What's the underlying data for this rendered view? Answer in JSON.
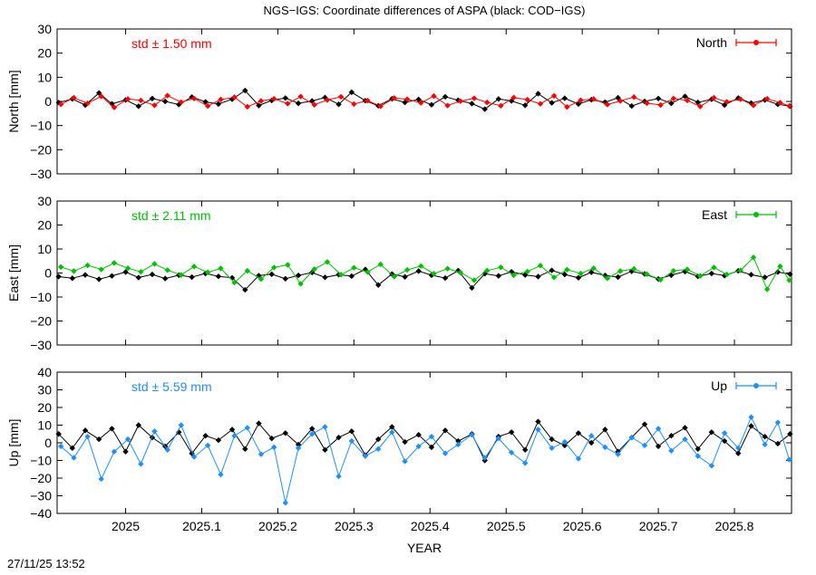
{
  "title": "NGS−IGS: Coordinate differences of ASPA (black: COD−IGS)",
  "xlabel": "YEAR",
  "timestamp": "27/11/25 13:52",
  "chart_data": [
    {
      "type": "line",
      "panel": "north",
      "ylabel": "North [mm]",
      "std_label": "std ± 1.50 mm",
      "legend": "North",
      "color": "#ff0000",
      "xlim": [
        2024.91,
        2025.875
      ],
      "ylim": [
        -30,
        30
      ],
      "yticks": [
        -30,
        -20,
        -10,
        0,
        10,
        20,
        30
      ],
      "xticks": [
        2025,
        2025.1,
        2025.2,
        2025.3,
        2025.4,
        2025.5,
        2025.6,
        2025.7,
        2025.8
      ],
      "legend_position": "top-right",
      "series": [
        {
          "name": "North",
          "color": "#ff0000",
          "x": [
            2024.915,
            2024.932,
            2024.95,
            2024.968,
            2024.985,
            2025.003,
            2025.02,
            2025.038,
            2025.055,
            2025.073,
            2025.09,
            2025.108,
            2025.125,
            2025.143,
            2025.16,
            2025.178,
            2025.195,
            2025.213,
            2025.23,
            2025.248,
            2025.265,
            2025.283,
            2025.3,
            2025.318,
            2025.335,
            2025.353,
            2025.37,
            2025.388,
            2025.405,
            2025.423,
            2025.44,
            2025.458,
            2025.475,
            2025.493,
            2025.51,
            2025.528,
            2025.545,
            2025.563,
            2025.58,
            2025.598,
            2025.615,
            2025.633,
            2025.65,
            2025.668,
            2025.685,
            2025.703,
            2025.72,
            2025.738,
            2025.755,
            2025.773,
            2025.79,
            2025.808,
            2025.825,
            2025.843,
            2025.86,
            2025.872
          ],
          "y": [
            -1.2,
            1.5,
            -0.8,
            2.1,
            -2.5,
            1.0,
            0.4,
            -1.6,
            2.4,
            -0.3,
            1.2,
            -1.9,
            0.8,
            1.7,
            -2.2,
            0.2,
            1.1,
            -0.9,
            2.0,
            -1.4,
            0.6,
            1.9,
            -1.1,
            0.3,
            -2.0,
            1.4,
            0.9,
            -0.6,
            2.2,
            -1.7,
            0.1,
            1.3,
            -0.4,
            -1.8,
            1.6,
            0.7,
            -1.0,
            2.3,
            -2.3,
            0.5,
            1.0,
            -1.3,
            0.2,
            1.8,
            -0.7,
            -1.5,
            1.2,
            0.4,
            -2.1,
            1.5,
            -0.2,
            0.9,
            -1.6,
            1.1,
            -0.5,
            -1.9
          ]
        },
        {
          "name": "COD−IGS",
          "color": "#000000",
          "x": [
            2024.912,
            2024.93,
            2024.947,
            2024.965,
            2024.982,
            2025.0,
            2025.017,
            2025.035,
            2025.052,
            2025.07,
            2025.087,
            2025.105,
            2025.122,
            2025.14,
            2025.157,
            2025.175,
            2025.192,
            2025.21,
            2025.227,
            2025.245,
            2025.262,
            2025.28,
            2025.297,
            2025.315,
            2025.332,
            2025.35,
            2025.367,
            2025.385,
            2025.402,
            2025.42,
            2025.437,
            2025.455,
            2025.472,
            2025.49,
            2025.507,
            2025.525,
            2025.542,
            2025.56,
            2025.577,
            2025.595,
            2025.612,
            2025.63,
            2025.647,
            2025.665,
            2025.682,
            2025.7,
            2025.717,
            2025.735,
            2025.752,
            2025.77,
            2025.787,
            2025.805,
            2025.822,
            2025.84,
            2025.857,
            2025.873
          ],
          "y": [
            -0.5,
            1.0,
            -1.5,
            3.5,
            -1.0,
            0.6,
            -2.0,
            1.2,
            0.0,
            -1.3,
            1.8,
            -0.2,
            -1.1,
            0.9,
            4.5,
            -1.7,
            0.4,
            1.4,
            -0.8,
            0.2,
            1.6,
            -1.2,
            3.8,
            0.3,
            -1.8,
            1.1,
            -0.4,
            0.8,
            -1.4,
            1.9,
            0.5,
            -0.9,
            -3.2,
            1.0,
            0.2,
            -1.6,
            3.2,
            -0.6,
            1.3,
            -1.1,
            0.7,
            -0.3,
            1.5,
            -1.9,
            0.0,
            1.2,
            -0.8,
            2.1,
            -0.4,
            0.9,
            -1.5,
            1.4,
            -0.7,
            0.6,
            -1.2,
            -2.0
          ]
        }
      ]
    },
    {
      "type": "line",
      "panel": "east",
      "ylabel": "East [mm]",
      "std_label": "std ± 2.11 mm",
      "legend": "East",
      "color": "#00c000",
      "xlim": [
        2024.91,
        2025.875
      ],
      "ylim": [
        -30,
        30
      ],
      "yticks": [
        -30,
        -20,
        -10,
        0,
        10,
        20,
        30
      ],
      "xticks": [
        2025,
        2025.1,
        2025.2,
        2025.3,
        2025.4,
        2025.5,
        2025.6,
        2025.7,
        2025.8
      ],
      "legend_position": "top-right",
      "series": [
        {
          "name": "East",
          "color": "#00c000",
          "x": [
            2024.915,
            2024.932,
            2024.95,
            2024.968,
            2024.985,
            2025.003,
            2025.02,
            2025.038,
            2025.055,
            2025.073,
            2025.09,
            2025.108,
            2025.125,
            2025.143,
            2025.16,
            2025.178,
            2025.195,
            2025.213,
            2025.23,
            2025.248,
            2025.265,
            2025.283,
            2025.3,
            2025.318,
            2025.335,
            2025.353,
            2025.37,
            2025.388,
            2025.405,
            2025.423,
            2025.44,
            2025.458,
            2025.475,
            2025.493,
            2025.51,
            2025.528,
            2025.545,
            2025.563,
            2025.58,
            2025.598,
            2025.615,
            2025.633,
            2025.65,
            2025.668,
            2025.685,
            2025.703,
            2025.72,
            2025.738,
            2025.755,
            2025.773,
            2025.79,
            2025.808,
            2025.825,
            2025.843,
            2025.86,
            2025.872
          ],
          "y": [
            2.5,
            0.8,
            3.2,
            1.5,
            4.2,
            2.0,
            0.5,
            3.8,
            1.2,
            -0.8,
            2.7,
            0.3,
            1.9,
            -4.0,
            0.9,
            -2.5,
            2.3,
            3.4,
            -4.5,
            1.6,
            4.6,
            -0.7,
            2.2,
            0.4,
            3.6,
            -1.5,
            1.3,
            2.9,
            -0.3,
            1.8,
            0.2,
            -3.0,
            1.0,
            2.4,
            -0.9,
            0.6,
            3.1,
            -1.8,
            1.4,
            -0.2,
            2.0,
            -2.2,
            0.8,
            1.7,
            -0.5,
            -2.8,
            0.9,
            1.5,
            -1.2,
            2.3,
            -0.6,
            1.1,
            6.5,
            -6.8,
            2.8,
            -3.0
          ]
        },
        {
          "name": "COD−IGS",
          "color": "#000000",
          "x": [
            2024.912,
            2024.93,
            2024.947,
            2024.965,
            2024.982,
            2025.0,
            2025.017,
            2025.035,
            2025.052,
            2025.07,
            2025.087,
            2025.105,
            2025.122,
            2025.14,
            2025.157,
            2025.175,
            2025.192,
            2025.21,
            2025.227,
            2025.245,
            2025.262,
            2025.28,
            2025.297,
            2025.315,
            2025.332,
            2025.35,
            2025.367,
            2025.385,
            2025.402,
            2025.42,
            2025.437,
            2025.455,
            2025.472,
            2025.49,
            2025.507,
            2025.525,
            2025.542,
            2025.56,
            2025.577,
            2025.595,
            2025.612,
            2025.63,
            2025.647,
            2025.665,
            2025.682,
            2025.7,
            2025.717,
            2025.735,
            2025.752,
            2025.77,
            2025.787,
            2025.805,
            2025.822,
            2025.84,
            2025.857,
            2025.873
          ],
          "y": [
            -1.5,
            -2.2,
            -0.8,
            -2.6,
            -1.2,
            0.4,
            -1.9,
            -0.6,
            -2.3,
            -0.9,
            -1.7,
            -0.2,
            -1.4,
            -2.0,
            -7.0,
            -1.1,
            -0.5,
            -2.4,
            -1.0,
            0.2,
            -1.8,
            -0.7,
            -1.3,
            1.5,
            -5.0,
            -0.4,
            -1.6,
            0.8,
            -0.9,
            -2.1,
            1.0,
            -6.2,
            -0.3,
            -1.2,
            0.5,
            -0.8,
            -1.5,
            1.1,
            -0.6,
            -2.0,
            0.3,
            -1.0,
            -1.7,
            0.7,
            -0.4,
            -2.5,
            -0.9,
            0.6,
            -1.4,
            -0.2,
            -1.1,
            0.9,
            -0.7,
            -1.8,
            0.4,
            -0.5
          ]
        }
      ]
    },
    {
      "type": "line",
      "panel": "up",
      "ylabel": "Up [mm]",
      "std_label": "std ± 5.59 mm",
      "legend": "Up",
      "color": "#1e90ff",
      "xlim": [
        2024.91,
        2025.875
      ],
      "ylim": [
        -40,
        40
      ],
      "yticks": [
        -40,
        -30,
        -20,
        -10,
        0,
        10,
        20,
        30,
        40
      ],
      "xticks": [
        2025,
        2025.1,
        2025.2,
        2025.3,
        2025.4,
        2025.5,
        2025.6,
        2025.7,
        2025.8
      ],
      "legend_position": "top-right",
      "series": [
        {
          "name": "Up",
          "color": "#1e90ff",
          "x": [
            2024.915,
            2024.932,
            2024.95,
            2024.968,
            2024.985,
            2025.003,
            2025.02,
            2025.038,
            2025.055,
            2025.073,
            2025.09,
            2025.108,
            2025.125,
            2025.143,
            2025.16,
            2025.178,
            2025.195,
            2025.21,
            2025.227,
            2025.245,
            2025.262,
            2025.28,
            2025.297,
            2025.315,
            2025.332,
            2025.35,
            2025.367,
            2025.385,
            2025.402,
            2025.42,
            2025.437,
            2025.455,
            2025.472,
            2025.49,
            2025.507,
            2025.525,
            2025.542,
            2025.56,
            2025.577,
            2025.595,
            2025.612,
            2025.63,
            2025.647,
            2025.665,
            2025.682,
            2025.7,
            2025.717,
            2025.735,
            2025.752,
            2025.77,
            2025.787,
            2025.805,
            2025.822,
            2025.84,
            2025.857,
            2025.872
          ],
          "y": [
            -2.0,
            -8.5,
            3.5,
            -20.5,
            -5.0,
            2.0,
            -12.0,
            6.5,
            -4.0,
            10.0,
            -8.0,
            -1.5,
            -18.0,
            4.0,
            8.5,
            -6.5,
            -2.5,
            -34.0,
            -3.0,
            5.0,
            9.0,
            -19.0,
            1.0,
            -7.5,
            -3.5,
            6.0,
            -10.5,
            -2.0,
            3.5,
            -6.0,
            -1.0,
            4.5,
            -8.5,
            2.5,
            -5.5,
            -11.5,
            7.5,
            -3.0,
            0.5,
            -9.0,
            4.0,
            -2.5,
            -6.5,
            3.0,
            -1.5,
            8.0,
            -4.5,
            2.0,
            -7.5,
            -13.0,
            5.5,
            -3.0,
            14.5,
            -1.0,
            11.5,
            -9.5
          ]
        },
        {
          "name": "COD−IGS",
          "color": "#000000",
          "x": [
            2024.912,
            2024.93,
            2024.947,
            2024.965,
            2024.982,
            2025.0,
            2025.017,
            2025.035,
            2025.052,
            2025.07,
            2025.087,
            2025.105,
            2025.122,
            2025.14,
            2025.157,
            2025.175,
            2025.192,
            2025.21,
            2025.227,
            2025.245,
            2025.262,
            2025.28,
            2025.297,
            2025.315,
            2025.332,
            2025.35,
            2025.367,
            2025.385,
            2025.402,
            2025.42,
            2025.437,
            2025.455,
            2025.472,
            2025.49,
            2025.507,
            2025.525,
            2025.542,
            2025.56,
            2025.577,
            2025.595,
            2025.612,
            2025.63,
            2025.647,
            2025.665,
            2025.682,
            2025.7,
            2025.717,
            2025.735,
            2025.752,
            2025.77,
            2025.787,
            2025.805,
            2025.822,
            2025.84,
            2025.857,
            2025.873
          ],
          "y": [
            5.0,
            -3.0,
            7.0,
            2.0,
            8.0,
            -5.0,
            10.0,
            3.0,
            -2.0,
            6.0,
            -6.0,
            4.0,
            1.5,
            7.5,
            -3.5,
            11.0,
            2.5,
            5.5,
            -1.0,
            8.0,
            -4.0,
            3.0,
            6.5,
            -7.0,
            2.0,
            9.0,
            0.5,
            4.5,
            -2.5,
            7.0,
            1.0,
            5.0,
            -10.0,
            3.5,
            6.0,
            -4.0,
            12.0,
            2.0,
            -1.5,
            5.5,
            0.0,
            7.5,
            -5.0,
            3.0,
            10.5,
            -2.0,
            4.0,
            8.5,
            -3.5,
            6.0,
            1.0,
            -6.0,
            9.5,
            3.5,
            -0.5,
            5.0
          ]
        }
      ]
    }
  ]
}
